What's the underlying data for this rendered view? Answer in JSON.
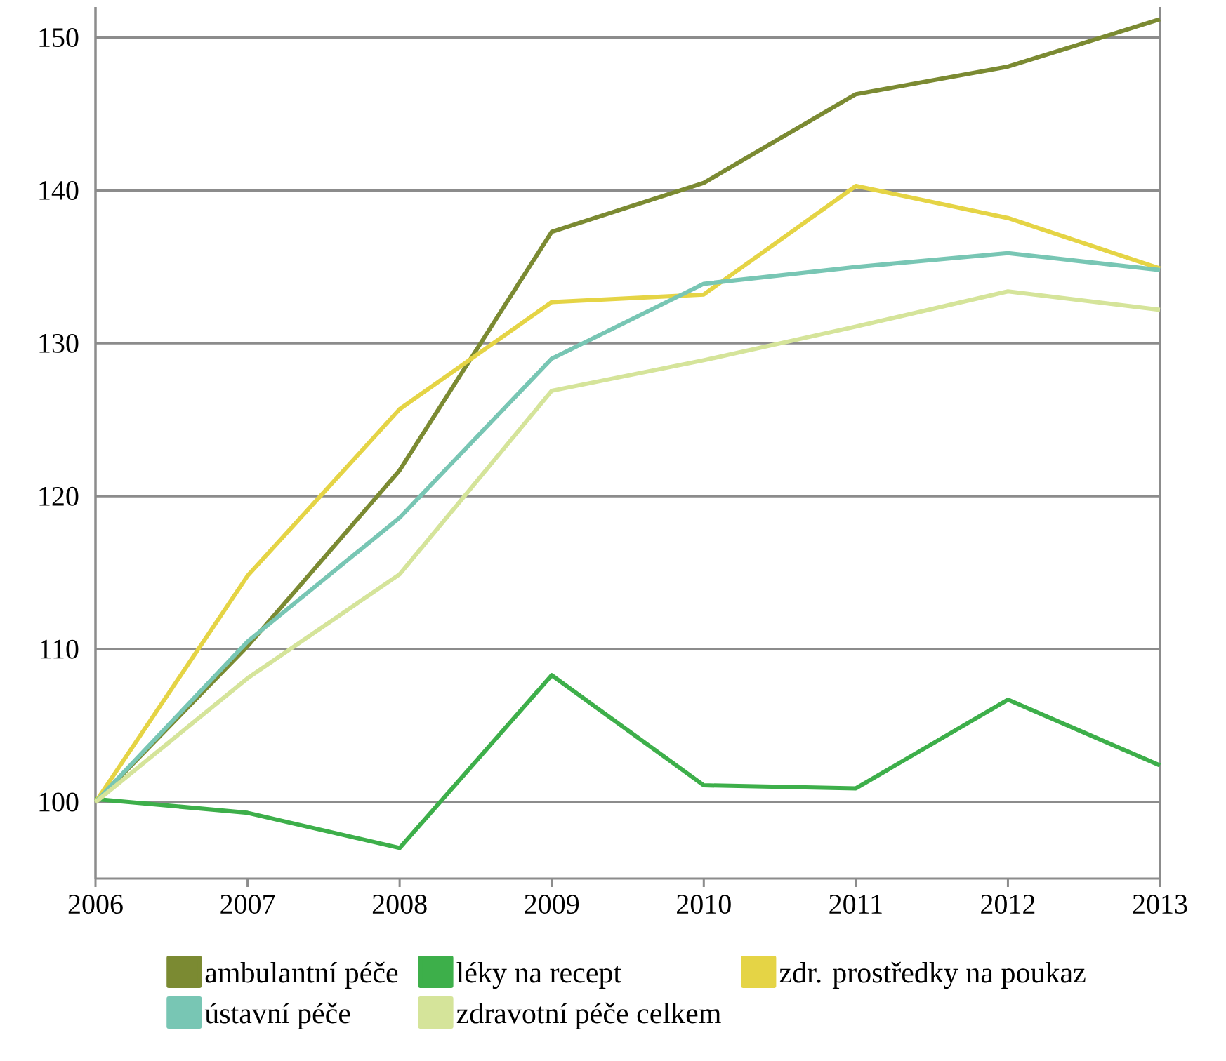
{
  "chart_data": {
    "type": "line",
    "x": [
      2006,
      2007,
      2008,
      2009,
      2010,
      2011,
      2012,
      2013
    ],
    "series": [
      {
        "name": "ambulantní péče",
        "color": "#7b8a32",
        "values": [
          100,
          110.2,
          121.7,
          137.3,
          140.5,
          146.3,
          148.1,
          151.2
        ]
      },
      {
        "name": "léky na recept",
        "color": "#3daf4a",
        "values": [
          100.2,
          99.3,
          97.0,
          108.3,
          101.1,
          100.9,
          106.7,
          102.4
        ]
      },
      {
        "name": "zdr. prostředky na poukaz",
        "color": "#e5d445",
        "values": [
          100,
          114.8,
          125.7,
          132.7,
          133.2,
          140.3,
          138.2,
          134.9
        ]
      },
      {
        "name": "ústavní péče",
        "color": "#78c6b4",
        "values": [
          100,
          110.5,
          118.6,
          129.0,
          133.9,
          135.0,
          135.9,
          134.8
        ]
      },
      {
        "name": "zdravotní péče celkem",
        "color": "#d5e49a",
        "values": [
          100,
          108.1,
          114.9,
          126.9,
          128.9,
          131.1,
          133.4,
          132.2
        ]
      }
    ],
    "xlim": [
      2006,
      2013
    ],
    "ylim": [
      95,
      152
    ],
    "xticks": [
      2006,
      2007,
      2008,
      2009,
      2010,
      2011,
      2012,
      2013
    ],
    "yticks": [
      100,
      110,
      120,
      130,
      140,
      150
    ],
    "grid": "y",
    "legend": "bottom",
    "marker": "none",
    "line_style": "solid"
  }
}
